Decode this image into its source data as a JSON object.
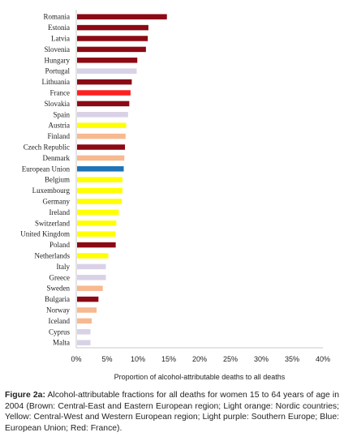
{
  "chart_data": {
    "type": "bar",
    "orientation": "horizontal",
    "categories": [
      "Romania",
      "Estonia",
      "Latvia",
      "Slovenia",
      "Hungary",
      "Portugal",
      "Lithuania",
      "France",
      "Slovakia",
      "Spain",
      "Austria",
      "Finland",
      "Czech Republic",
      "Denmark",
      "European Union",
      "Belgium",
      "Luxembourg",
      "Germany",
      "Ireland",
      "Switzerland",
      "United Kingdom",
      "Poland",
      "Netherlands",
      "Italy",
      "Greece",
      "Sweden",
      "Bulgaria",
      "Norway",
      "Iceland",
      "Cyprus",
      "Malta"
    ],
    "values": [
      14.7,
      11.7,
      11.6,
      11.3,
      9.9,
      9.8,
      9.0,
      8.8,
      8.6,
      8.4,
      8.1,
      8.0,
      7.9,
      7.8,
      7.7,
      7.5,
      7.5,
      7.4,
      6.9,
      6.5,
      6.4,
      6.4,
      5.2,
      4.8,
      4.8,
      4.3,
      3.6,
      3.3,
      2.5,
      2.3,
      2.3
    ],
    "colors": [
      "#8b0a14",
      "#8b0a14",
      "#8b0a14",
      "#8b0a14",
      "#8b0a14",
      "#d9d2e6",
      "#8b0a14",
      "#ff2020",
      "#8b0a14",
      "#d9d2e6",
      "#ffff00",
      "#f7b98f",
      "#8b0a14",
      "#f7b98f",
      "#1f73b7",
      "#ffff00",
      "#ffff00",
      "#ffff00",
      "#ffff00",
      "#ffff00",
      "#ffff00",
      "#8b0a14",
      "#ffff00",
      "#d9d2e6",
      "#d9d2e6",
      "#f7b98f",
      "#8b0a14",
      "#f7b98f",
      "#f7b98f",
      "#d9d2e6",
      "#d9d2e6"
    ],
    "xlim": [
      0,
      40
    ],
    "xticks": [
      "0%",
      "5%",
      "10%",
      "15%",
      "20%",
      "25%",
      "30%",
      "35%",
      "40%"
    ],
    "xlabel": "Proportion of alcohol-attributable deaths to all deaths",
    "grid": false
  },
  "caption": {
    "label": "Figure 2a:",
    "text": " Alcohol-attributable fractions for all deaths for women 15 to 64 years of age in 2004 (Brown: Central-East and Eastern European region; Light orange: Nordic countries; Yellow: Central-West and Western European region; Light purple: Southern Europe; Blue: European Union; Red: France)."
  }
}
